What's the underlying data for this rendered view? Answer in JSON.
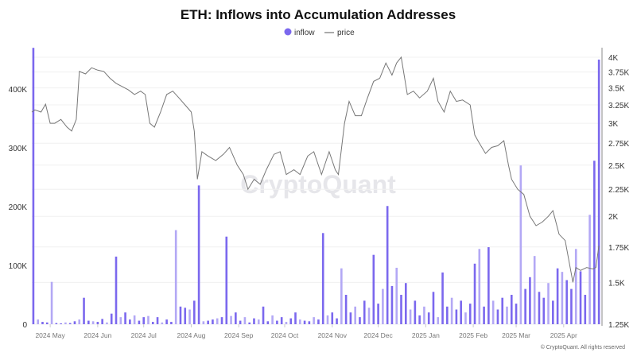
{
  "chart_data": {
    "type": "bar+line",
    "title": "ETH: Inflows into Accumulation Addresses",
    "legend": {
      "placement": "top-center",
      "entries": [
        "inflow",
        "price"
      ]
    },
    "watermark": "CryptoQuant",
    "copyright": "© CryptoQuant. All rights reserved",
    "colors": {
      "inflow": "#7b68ee",
      "inflow_light": "#b3a8f5",
      "price": "#777777",
      "grid": "#f0f0f0"
    },
    "grid": true,
    "x_axis": {
      "type": "date",
      "range": [
        "2024-04-19",
        "2025-04-26"
      ],
      "ticks": [
        [
          "2024-05-01",
          "2024 May"
        ],
        [
          "2024-06-01",
          "2024 Jun"
        ],
        [
          "2024-07-01",
          "2024 Jul"
        ],
        [
          "2024-08-01",
          "2024 Aug"
        ],
        [
          "2024-09-01",
          "2024 Sep"
        ],
        [
          "2024-10-01",
          "2024 Oct"
        ],
        [
          "2024-11-01",
          "2024 Nov"
        ],
        [
          "2024-12-01",
          "2024 Dec"
        ],
        [
          "2025-01-01",
          "2025 Jan"
        ],
        [
          "2025-02-01",
          "2025 Feb"
        ],
        [
          "2025-03-01",
          "2025 Mar"
        ],
        [
          "2025-04-01",
          "2025 Apr"
        ]
      ]
    },
    "y_left": {
      "series": "inflow",
      "unit": "ETH",
      "scale": "linear",
      "range": [
        0,
        470000
      ],
      "ticks": [
        [
          0,
          "0"
        ],
        [
          100000,
          "100K"
        ],
        [
          200000,
          "200K"
        ],
        [
          300000,
          "300K"
        ],
        [
          400000,
          "400K"
        ]
      ]
    },
    "y_right": {
      "series": "price",
      "unit": "USD",
      "scale": "log",
      "range": [
        1250,
        4000
      ],
      "ticks": [
        [
          1250,
          "1.25K"
        ],
        [
          1500,
          "1.5K"
        ],
        [
          1750,
          "1.75K"
        ],
        [
          2000,
          "2K"
        ],
        [
          2250,
          "2.25K"
        ],
        [
          2500,
          "2.5K"
        ],
        [
          2750,
          "2.75K"
        ],
        [
          3000,
          "3K"
        ],
        [
          3250,
          "3.25K"
        ],
        [
          3500,
          "3.5K"
        ],
        [
          3750,
          "3.75K"
        ],
        [
          4000,
          "4K"
        ]
      ]
    },
    "inflow": [
      [
        "2024-04-20",
        470000
      ],
      [
        "2024-04-23",
        8000
      ],
      [
        "2024-04-26",
        4000
      ],
      [
        "2024-04-29",
        3000
      ],
      [
        "2024-05-02",
        72000
      ],
      [
        "2024-05-05",
        2000
      ],
      [
        "2024-05-08",
        1500
      ],
      [
        "2024-05-11",
        3000
      ],
      [
        "2024-05-14",
        2000
      ],
      [
        "2024-05-17",
        5000
      ],
      [
        "2024-05-20",
        8000
      ],
      [
        "2024-05-23",
        45000
      ],
      [
        "2024-05-26",
        6000
      ],
      [
        "2024-05-29",
        5000
      ],
      [
        "2024-06-01",
        4000
      ],
      [
        "2024-06-04",
        9000
      ],
      [
        "2024-06-07",
        3000
      ],
      [
        "2024-06-10",
        18000
      ],
      [
        "2024-06-13",
        115000
      ],
      [
        "2024-06-16",
        12000
      ],
      [
        "2024-06-19",
        20000
      ],
      [
        "2024-06-22",
        8000
      ],
      [
        "2024-06-25",
        15000
      ],
      [
        "2024-06-28",
        6000
      ],
      [
        "2024-07-01",
        12000
      ],
      [
        "2024-07-04",
        14000
      ],
      [
        "2024-07-07",
        4000
      ],
      [
        "2024-07-10",
        12000
      ],
      [
        "2024-07-13",
        3000
      ],
      [
        "2024-07-16",
        8000
      ],
      [
        "2024-07-19",
        4000
      ],
      [
        "2024-07-22",
        160000
      ],
      [
        "2024-07-25",
        30000
      ],
      [
        "2024-07-28",
        28000
      ],
      [
        "2024-07-31",
        25000
      ],
      [
        "2024-08-03",
        40000
      ],
      [
        "2024-08-06",
        236000
      ],
      [
        "2024-08-09",
        5000
      ],
      [
        "2024-08-12",
        6000
      ],
      [
        "2024-08-15",
        8000
      ],
      [
        "2024-08-18",
        10000
      ],
      [
        "2024-08-21",
        12000
      ],
      [
        "2024-08-24",
        149000
      ],
      [
        "2024-08-27",
        14000
      ],
      [
        "2024-08-30",
        20000
      ],
      [
        "2024-09-02",
        6000
      ],
      [
        "2024-09-05",
        12000
      ],
      [
        "2024-09-08",
        3000
      ],
      [
        "2024-09-11",
        10000
      ],
      [
        "2024-09-14",
        8000
      ],
      [
        "2024-09-17",
        30000
      ],
      [
        "2024-09-20",
        5000
      ],
      [
        "2024-09-23",
        15000
      ],
      [
        "2024-09-26",
        6000
      ],
      [
        "2024-09-29",
        12000
      ],
      [
        "2024-10-02",
        4000
      ],
      [
        "2024-10-05",
        10000
      ],
      [
        "2024-10-08",
        20000
      ],
      [
        "2024-10-11",
        8000
      ],
      [
        "2024-10-14",
        6000
      ],
      [
        "2024-10-17",
        5000
      ],
      [
        "2024-10-20",
        12000
      ],
      [
        "2024-10-23",
        8000
      ],
      [
        "2024-10-26",
        155000
      ],
      [
        "2024-10-29",
        15000
      ],
      [
        "2024-11-01",
        20000
      ],
      [
        "2024-11-04",
        10000
      ],
      [
        "2024-11-07",
        95000
      ],
      [
        "2024-11-10",
        50000
      ],
      [
        "2024-11-13",
        20000
      ],
      [
        "2024-11-16",
        30000
      ],
      [
        "2024-11-19",
        12000
      ],
      [
        "2024-11-22",
        40000
      ],
      [
        "2024-11-25",
        28000
      ],
      [
        "2024-11-28",
        118000
      ],
      [
        "2024-12-01",
        35000
      ],
      [
        "2024-12-04",
        60000
      ],
      [
        "2024-12-07",
        201000
      ],
      [
        "2024-12-10",
        65000
      ],
      [
        "2024-12-13",
        96000
      ],
      [
        "2024-12-16",
        50000
      ],
      [
        "2024-12-19",
        70000
      ],
      [
        "2024-12-22",
        25000
      ],
      [
        "2024-12-25",
        40000
      ],
      [
        "2024-12-28",
        15000
      ],
      [
        "2024-12-31",
        30000
      ],
      [
        "2025-01-03",
        20000
      ],
      [
        "2025-01-06",
        55000
      ],
      [
        "2025-01-09",
        12000
      ],
      [
        "2025-01-12",
        88000
      ],
      [
        "2025-01-15",
        30000
      ],
      [
        "2025-01-18",
        45000
      ],
      [
        "2025-01-21",
        25000
      ],
      [
        "2025-01-24",
        40000
      ],
      [
        "2025-01-27",
        20000
      ],
      [
        "2025-01-30",
        35000
      ],
      [
        "2025-02-02",
        103000
      ],
      [
        "2025-02-05",
        128000
      ],
      [
        "2025-02-08",
        30000
      ],
      [
        "2025-02-11",
        131000
      ],
      [
        "2025-02-14",
        40000
      ],
      [
        "2025-02-17",
        25000
      ],
      [
        "2025-02-20",
        45000
      ],
      [
        "2025-02-23",
        30000
      ],
      [
        "2025-02-26",
        50000
      ],
      [
        "2025-03-01",
        35000
      ],
      [
        "2025-03-04",
        270000
      ],
      [
        "2025-03-07",
        60000
      ],
      [
        "2025-03-10",
        80000
      ],
      [
        "2025-03-13",
        116000
      ],
      [
        "2025-03-16",
        55000
      ],
      [
        "2025-03-19",
        45000
      ],
      [
        "2025-03-22",
        70000
      ],
      [
        "2025-03-25",
        40000
      ],
      [
        "2025-03-28",
        95000
      ],
      [
        "2025-03-31",
        89000
      ],
      [
        "2025-04-03",
        75000
      ],
      [
        "2025-04-06",
        60000
      ],
      [
        "2025-04-09",
        128000
      ],
      [
        "2025-04-12",
        90000
      ],
      [
        "2025-04-15",
        50000
      ],
      [
        "2025-04-18",
        186000
      ],
      [
        "2025-04-21",
        278000
      ],
      [
        "2025-04-24",
        450000
      ]
    ],
    "price": [
      [
        "2024-04-19",
        3150
      ],
      [
        "2024-04-21",
        3180
      ],
      [
        "2024-04-25",
        3150
      ],
      [
        "2024-04-28",
        3260
      ],
      [
        "2024-05-01",
        3000
      ],
      [
        "2024-05-04",
        3000
      ],
      [
        "2024-05-08",
        3050
      ],
      [
        "2024-05-12",
        2950
      ],
      [
        "2024-05-15",
        2900
      ],
      [
        "2024-05-18",
        3050
      ],
      [
        "2024-05-20",
        3760
      ],
      [
        "2024-05-24",
        3720
      ],
      [
        "2024-05-28",
        3820
      ],
      [
        "2024-06-01",
        3780
      ],
      [
        "2024-06-05",
        3760
      ],
      [
        "2024-06-09",
        3650
      ],
      [
        "2024-06-13",
        3570
      ],
      [
        "2024-06-17",
        3520
      ],
      [
        "2024-06-21",
        3470
      ],
      [
        "2024-06-25",
        3400
      ],
      [
        "2024-06-29",
        3450
      ],
      [
        "2024-07-02",
        3400
      ],
      [
        "2024-07-05",
        3000
      ],
      [
        "2024-07-08",
        2950
      ],
      [
        "2024-07-12",
        3150
      ],
      [
        "2024-07-16",
        3400
      ],
      [
        "2024-07-20",
        3450
      ],
      [
        "2024-07-24",
        3350
      ],
      [
        "2024-07-28",
        3250
      ],
      [
        "2024-08-01",
        3150
      ],
      [
        "2024-08-03",
        2900
      ],
      [
        "2024-08-05",
        2350
      ],
      [
        "2024-08-08",
        2650
      ],
      [
        "2024-08-12",
        2600
      ],
      [
        "2024-08-17",
        2550
      ],
      [
        "2024-08-22",
        2620
      ],
      [
        "2024-08-26",
        2700
      ],
      [
        "2024-08-31",
        2500
      ],
      [
        "2024-09-04",
        2400
      ],
      [
        "2024-09-07",
        2250
      ],
      [
        "2024-09-11",
        2350
      ],
      [
        "2024-09-15",
        2300
      ],
      [
        "2024-09-19",
        2450
      ],
      [
        "2024-09-24",
        2620
      ],
      [
        "2024-09-28",
        2650
      ],
      [
        "2024-10-02",
        2400
      ],
      [
        "2024-10-07",
        2450
      ],
      [
        "2024-10-11",
        2400
      ],
      [
        "2024-10-16",
        2600
      ],
      [
        "2024-10-20",
        2650
      ],
      [
        "2024-10-25",
        2400
      ],
      [
        "2024-10-30",
        2650
      ],
      [
        "2024-11-03",
        2450
      ],
      [
        "2024-11-05",
        2400
      ],
      [
        "2024-11-09",
        3000
      ],
      [
        "2024-11-12",
        3300
      ],
      [
        "2024-11-16",
        3100
      ],
      [
        "2024-11-20",
        3100
      ],
      [
        "2024-11-24",
        3350
      ],
      [
        "2024-11-28",
        3600
      ],
      [
        "2024-12-02",
        3650
      ],
      [
        "2024-12-06",
        3900
      ],
      [
        "2024-12-10",
        3700
      ],
      [
        "2024-12-13",
        3900
      ],
      [
        "2024-12-16",
        4000
      ],
      [
        "2024-12-20",
        3400
      ],
      [
        "2024-12-24",
        3450
      ],
      [
        "2024-12-28",
        3350
      ],
      [
        "2025-01-02",
        3450
      ],
      [
        "2025-01-06",
        3650
      ],
      [
        "2025-01-09",
        3300
      ],
      [
        "2025-01-13",
        3150
      ],
      [
        "2025-01-17",
        3450
      ],
      [
        "2025-01-21",
        3300
      ],
      [
        "2025-01-25",
        3320
      ],
      [
        "2025-01-30",
        3250
      ],
      [
        "2025-02-02",
        2850
      ],
      [
        "2025-02-05",
        2750
      ],
      [
        "2025-02-09",
        2630
      ],
      [
        "2025-02-13",
        2700
      ],
      [
        "2025-02-17",
        2720
      ],
      [
        "2025-02-21",
        2780
      ],
      [
        "2025-02-24",
        2500
      ],
      [
        "2025-02-26",
        2350
      ],
      [
        "2025-03-02",
        2250
      ],
      [
        "2025-03-06",
        2200
      ],
      [
        "2025-03-10",
        2000
      ],
      [
        "2025-03-14",
        1920
      ],
      [
        "2025-03-18",
        1950
      ],
      [
        "2025-03-22",
        2000
      ],
      [
        "2025-03-25",
        2050
      ],
      [
        "2025-03-29",
        1850
      ],
      [
        "2025-04-02",
        1800
      ],
      [
        "2025-04-07",
        1500
      ],
      [
        "2025-04-09",
        1600
      ],
      [
        "2025-04-12",
        1580
      ],
      [
        "2025-04-16",
        1600
      ],
      [
        "2025-04-20",
        1590
      ],
      [
        "2025-04-22",
        1600
      ],
      [
        "2025-04-24",
        1760
      ]
    ]
  }
}
